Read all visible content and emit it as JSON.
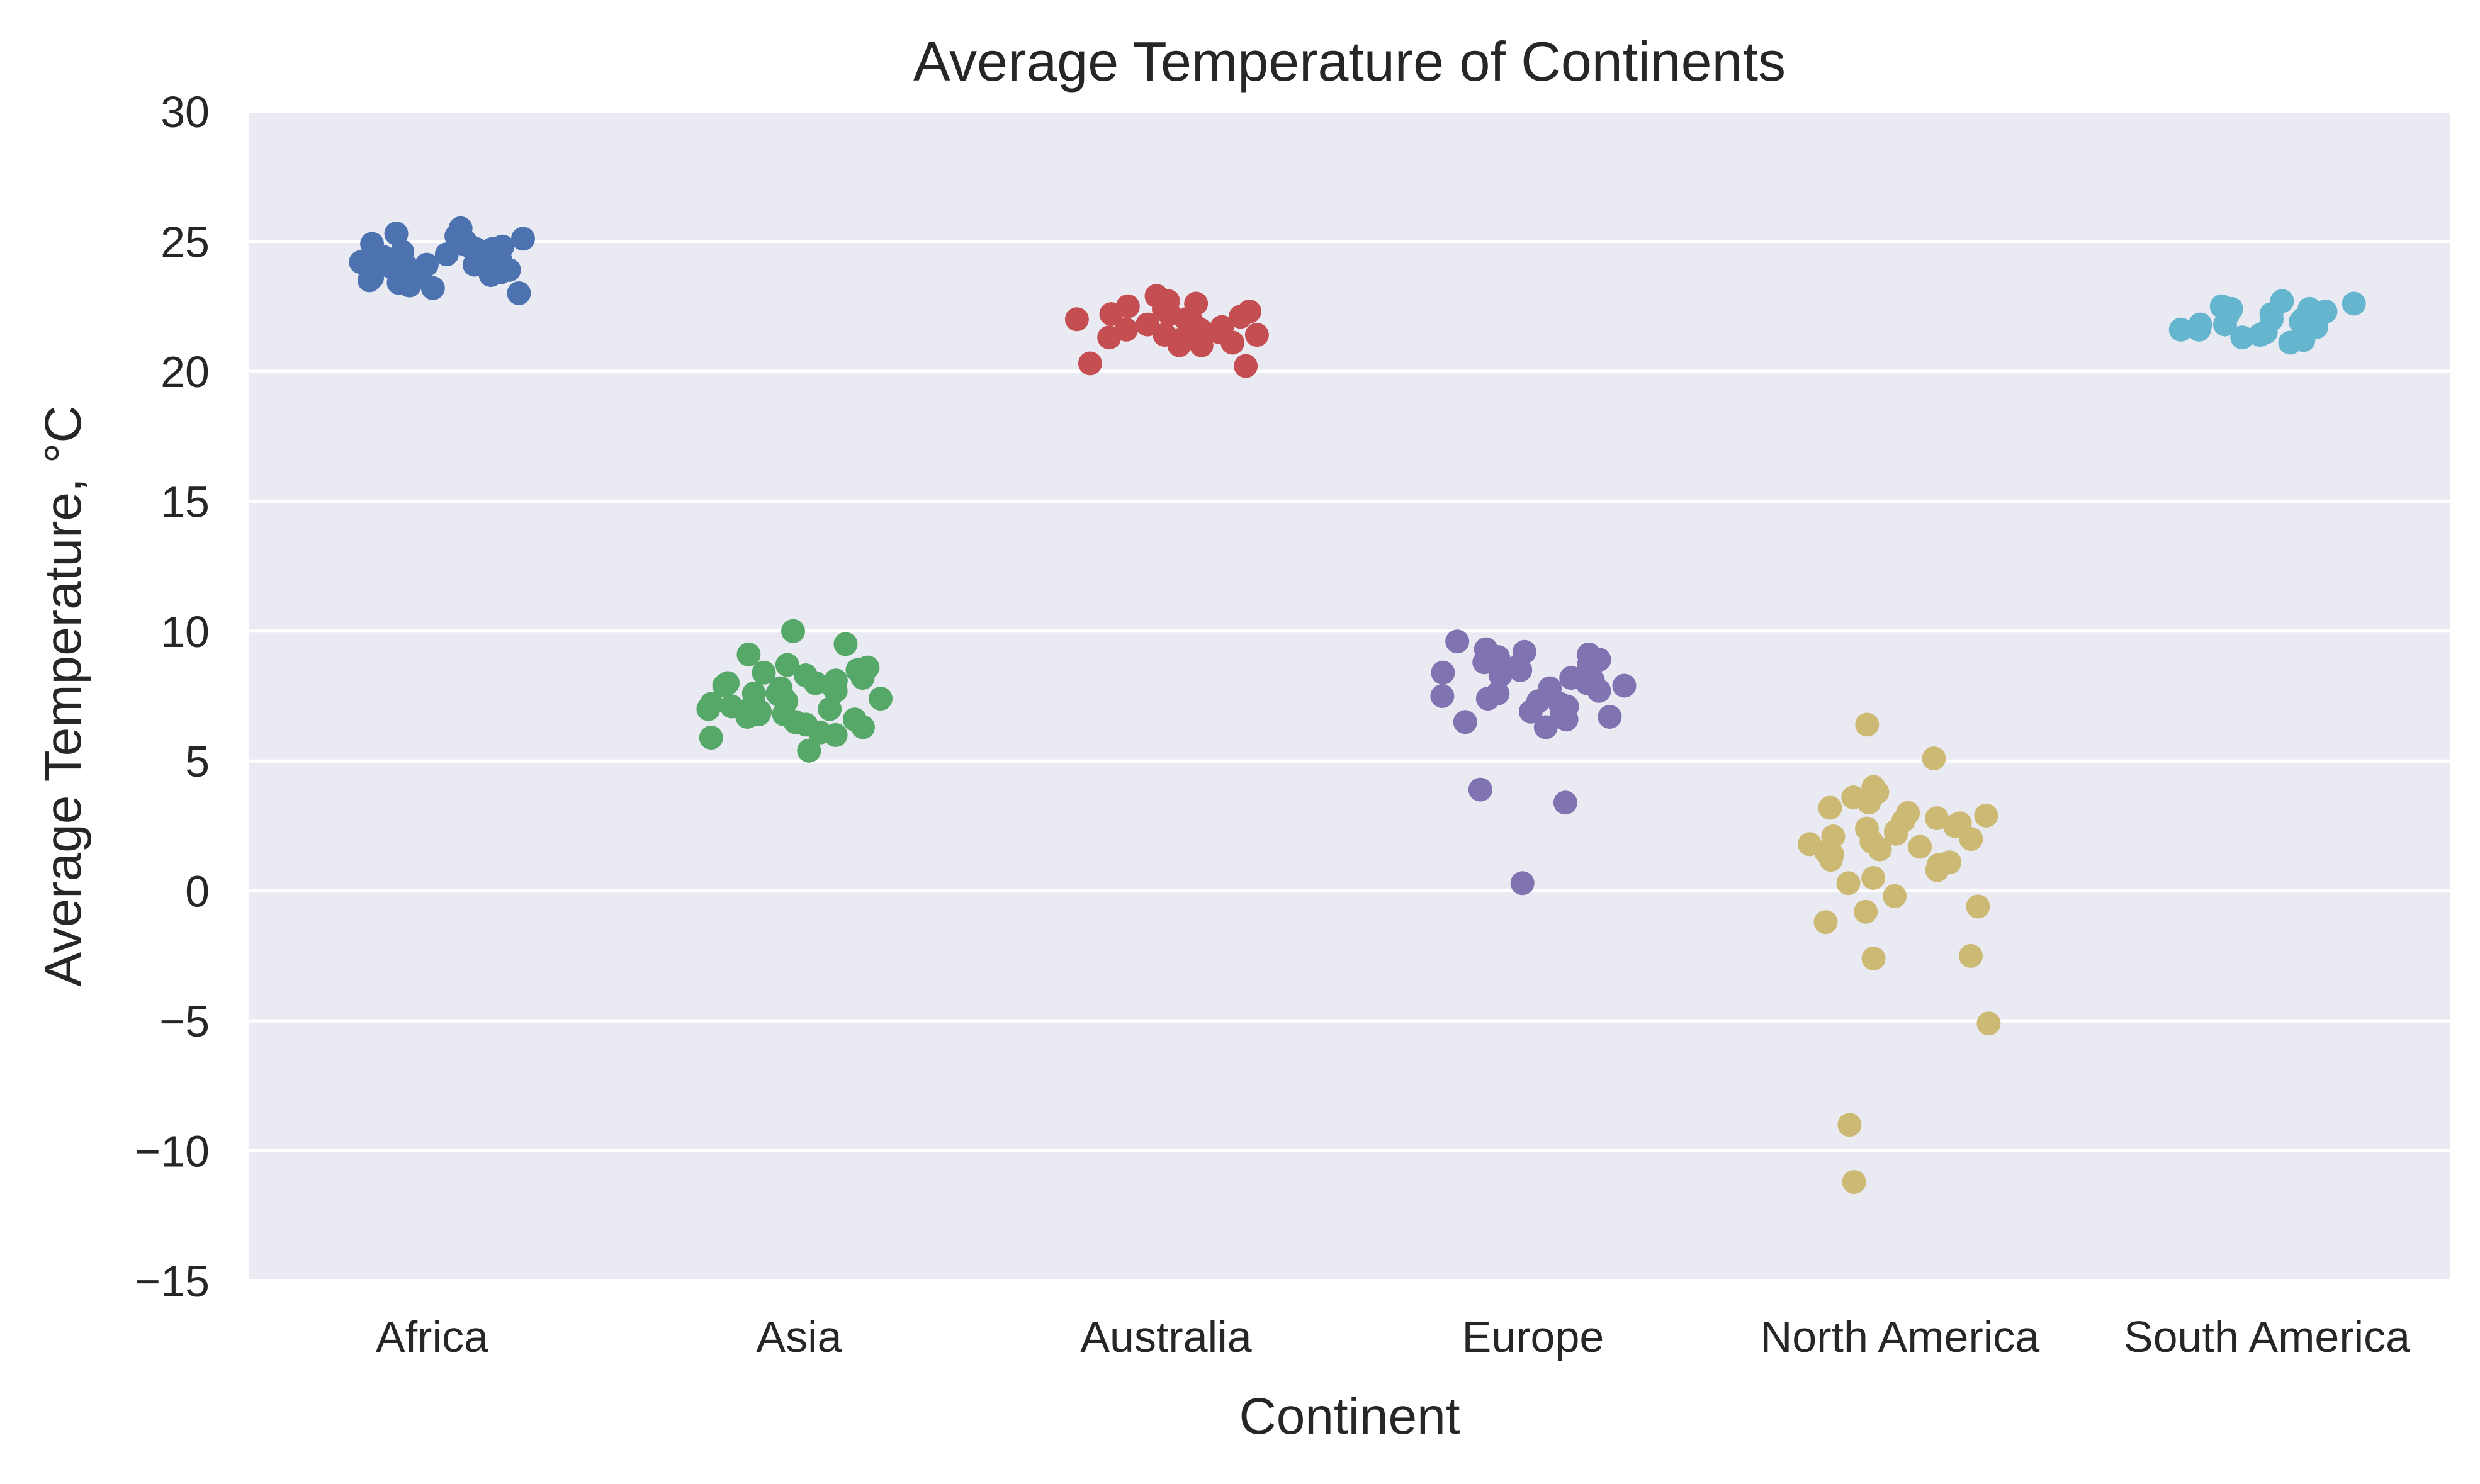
{
  "chart_data": {
    "type": "scatter",
    "title": "Average Temperature of Continents",
    "xlabel": "Continent",
    "ylabel": "Average Temperature, °C",
    "categories": [
      "Africa",
      "Asia",
      "Australia",
      "Europe",
      "North America",
      "South America"
    ],
    "ylim": [
      -15,
      30
    ],
    "yticks": [
      30,
      25,
      20,
      15,
      10,
      5,
      0,
      -5,
      -10,
      -15
    ],
    "ytick_labels": [
      "30",
      "25",
      "20",
      "15",
      "10",
      "5",
      "0",
      "−5",
      "−10",
      "−15"
    ],
    "grid": true,
    "legend": "none",
    "background_color": "#EAEAF2",
    "grid_color": "#FFFFFF",
    "series": [
      {
        "category": "Africa",
        "color": "#4C72B0",
        "values": [
          25.5,
          25.3,
          25.2,
          25.1,
          25.0,
          24.9,
          24.9,
          24.8,
          24.8,
          24.7,
          24.7,
          24.6,
          24.6,
          24.5,
          24.5,
          24.4,
          24.4,
          24.3,
          24.3,
          24.2,
          24.2,
          24.1,
          24.1,
          24.0,
          24.0,
          23.9,
          23.9,
          23.8,
          23.8,
          23.7,
          23.7,
          23.6,
          23.5,
          23.4,
          23.3,
          23.2,
          23.0
        ]
      },
      {
        "category": "Asia",
        "color": "#55A868",
        "values": [
          10.0,
          9.5,
          9.1,
          8.7,
          8.6,
          8.5,
          8.4,
          8.3,
          8.2,
          8.1,
          8.0,
          8.0,
          7.9,
          7.8,
          7.8,
          7.7,
          7.6,
          7.6,
          7.5,
          7.4,
          7.4,
          7.3,
          7.2,
          7.2,
          7.1,
          7.0,
          7.0,
          6.9,
          6.8,
          6.8,
          6.7,
          6.6,
          6.5,
          6.4,
          6.3,
          6.1,
          6.0,
          5.9,
          5.4
        ]
      },
      {
        "category": "Australia",
        "color": "#C44E52",
        "values": [
          22.9,
          22.7,
          22.6,
          22.5,
          22.4,
          22.3,
          22.2,
          22.2,
          22.1,
          22.0,
          22.0,
          21.9,
          21.8,
          21.8,
          21.7,
          21.6,
          21.6,
          21.5,
          21.4,
          21.4,
          21.3,
          21.2,
          21.2,
          21.1,
          21.0,
          21.0,
          20.3,
          20.2
        ]
      },
      {
        "category": "Europe",
        "color": "#8172B2",
        "values": [
          9.6,
          9.3,
          9.2,
          9.1,
          9.0,
          8.9,
          8.8,
          8.7,
          8.6,
          8.5,
          8.4,
          8.3,
          8.2,
          8.1,
          8.0,
          7.9,
          7.8,
          7.7,
          7.6,
          7.5,
          7.4,
          7.3,
          7.2,
          7.1,
          7.0,
          6.9,
          6.8,
          6.7,
          6.6,
          6.5,
          6.3,
          3.9,
          3.4,
          0.3
        ]
      },
      {
        "category": "North America",
        "color": "#CCB974",
        "values": [
          6.4,
          5.1,
          4.0,
          3.8,
          3.6,
          3.4,
          3.2,
          3.0,
          2.9,
          2.8,
          2.7,
          2.6,
          2.5,
          2.4,
          2.3,
          2.2,
          2.1,
          2.0,
          1.9,
          1.8,
          1.7,
          1.6,
          1.5,
          1.4,
          1.3,
          1.2,
          1.1,
          1.0,
          0.8,
          0.5,
          0.3,
          -0.2,
          -0.6,
          -0.8,
          -1.2,
          -2.5,
          -2.6,
          -5.1,
          -9.0,
          -11.2
        ]
      },
      {
        "category": "South America",
        "color": "#64B5CD",
        "values": [
          22.7,
          22.6,
          22.5,
          22.4,
          22.4,
          22.3,
          22.2,
          22.2,
          22.1,
          22.0,
          22.0,
          21.9,
          21.8,
          21.8,
          21.7,
          21.6,
          21.6,
          21.5,
          21.4,
          21.3,
          21.2,
          21.1
        ]
      }
    ]
  }
}
